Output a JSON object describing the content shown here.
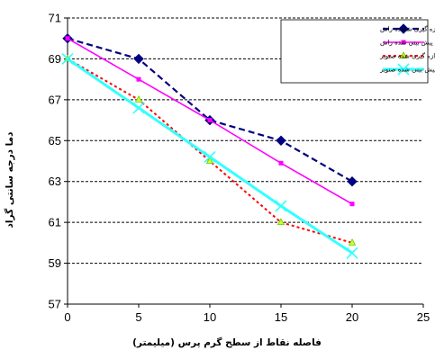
{
  "chart_data": {
    "type": "line",
    "title": "",
    "xlabel": "فاصله نقاط از سطح گرم پرس  (میلیمتر)",
    "ylabel": "دما درجه سانتی گراد",
    "xlim": [
      0,
      25
    ],
    "ylim": [
      57,
      71
    ],
    "xticks": [
      "0",
      "5",
      "10",
      "15",
      "20",
      "25"
    ],
    "yticks": [
      "57",
      "59",
      "61",
      "63",
      "65",
      "67",
      "69",
      "71"
    ],
    "grid": "horizontal-dashed",
    "legend_position": "top-right",
    "series": [
      {
        "name": "حرارت اندازه گیری شسده راش",
        "color": "#000080",
        "dash": "7,4",
        "marker": "diamond",
        "x": [
          0,
          5,
          10,
          15,
          20
        ],
        "y": [
          70,
          69,
          66,
          65,
          63
        ]
      },
      {
        "name": "حرارت  پیش بینی شده راش",
        "color": "#ff00ff",
        "dash": "",
        "marker": "square",
        "x": [
          0,
          5,
          10,
          15,
          20
        ],
        "y": [
          70,
          68,
          66,
          63.9,
          61.9
        ]
      },
      {
        "name": "حرارت اندازه گیری شده صنوبر",
        "color": "#ff0000",
        "dash": "3,3",
        "marker": "triangle",
        "x": [
          0,
          5,
          10,
          15,
          20
        ],
        "y": [
          69,
          67,
          64,
          61,
          60
        ]
      },
      {
        "name": "حرارت  پیش بینی شده صنوبر",
        "color": "#33ffff",
        "dash": "",
        "marker": "x",
        "x": [
          0,
          5,
          10,
          15,
          20
        ],
        "y": [
          69,
          66.6,
          64.2,
          61.8,
          59.5
        ]
      }
    ]
  }
}
